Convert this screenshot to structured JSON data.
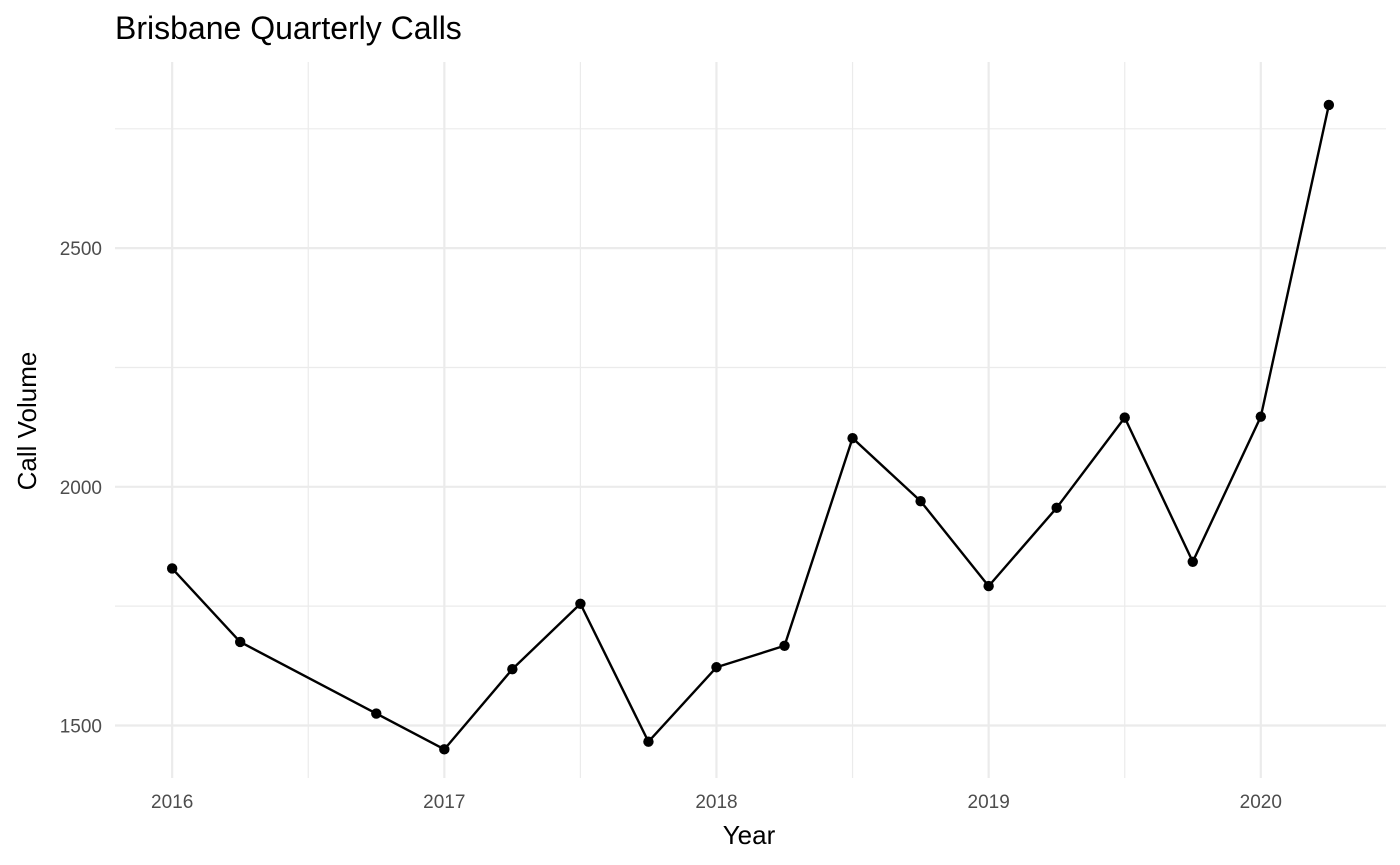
{
  "chart_data": {
    "type": "line",
    "title": "Brisbane Quarterly Calls",
    "xlabel": "Year",
    "ylabel": "Call Volume",
    "x_ticks": [
      2016,
      2017,
      2018,
      2019,
      2020
    ],
    "y_ticks": [
      1500,
      2000,
      2500
    ],
    "xlim": [
      2015.79,
      2020.46
    ],
    "ylim": [
      1390,
      2890
    ],
    "grid": true,
    "legend": "none",
    "colors": {
      "line": "#000000",
      "point": "#000000",
      "grid": "#ebebeb",
      "tick_text": "#4d4d4d"
    },
    "series": [
      {
        "x": [
          2016.0,
          2016.25,
          2016.75,
          2017.0,
          2017.25,
          2017.5,
          2017.75,
          2018.0,
          2018.25,
          2018.5,
          2018.75,
          2019.0,
          2019.25,
          2019.5,
          2019.75,
          2020.0,
          2020.25
        ],
        "values": [
          1829,
          1675,
          1525,
          1450,
          1618,
          1755,
          1466,
          1622,
          1667,
          2102,
          1970,
          1792,
          1956,
          2145,
          1843,
          2147,
          2800
        ]
      }
    ]
  }
}
